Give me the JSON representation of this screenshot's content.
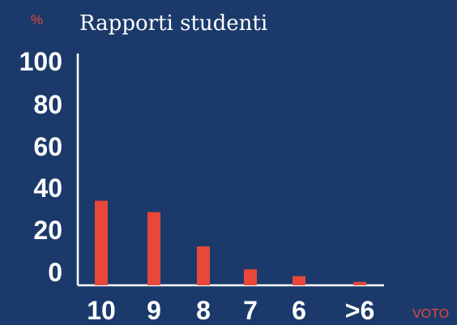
{
  "chart_data": {
    "type": "bar",
    "title": "Rapporti studenti",
    "y_unit": "%",
    "x_unit": "VOTO",
    "categories": [
      "10",
      "9",
      "8",
      "7",
      "6",
      ">6"
    ],
    "values": [
      37,
      32,
      17,
      7,
      4,
      1.5
    ],
    "yticks": [
      "100",
      "80",
      "60",
      "40",
      "20",
      "0"
    ],
    "ylim": [
      0,
      100
    ],
    "grid": false,
    "colors": {
      "background": "#1b3a6b",
      "bar": "#e8473a",
      "axis": "#ffffff",
      "text": "#ffffff",
      "accent": "#e8473a"
    }
  }
}
